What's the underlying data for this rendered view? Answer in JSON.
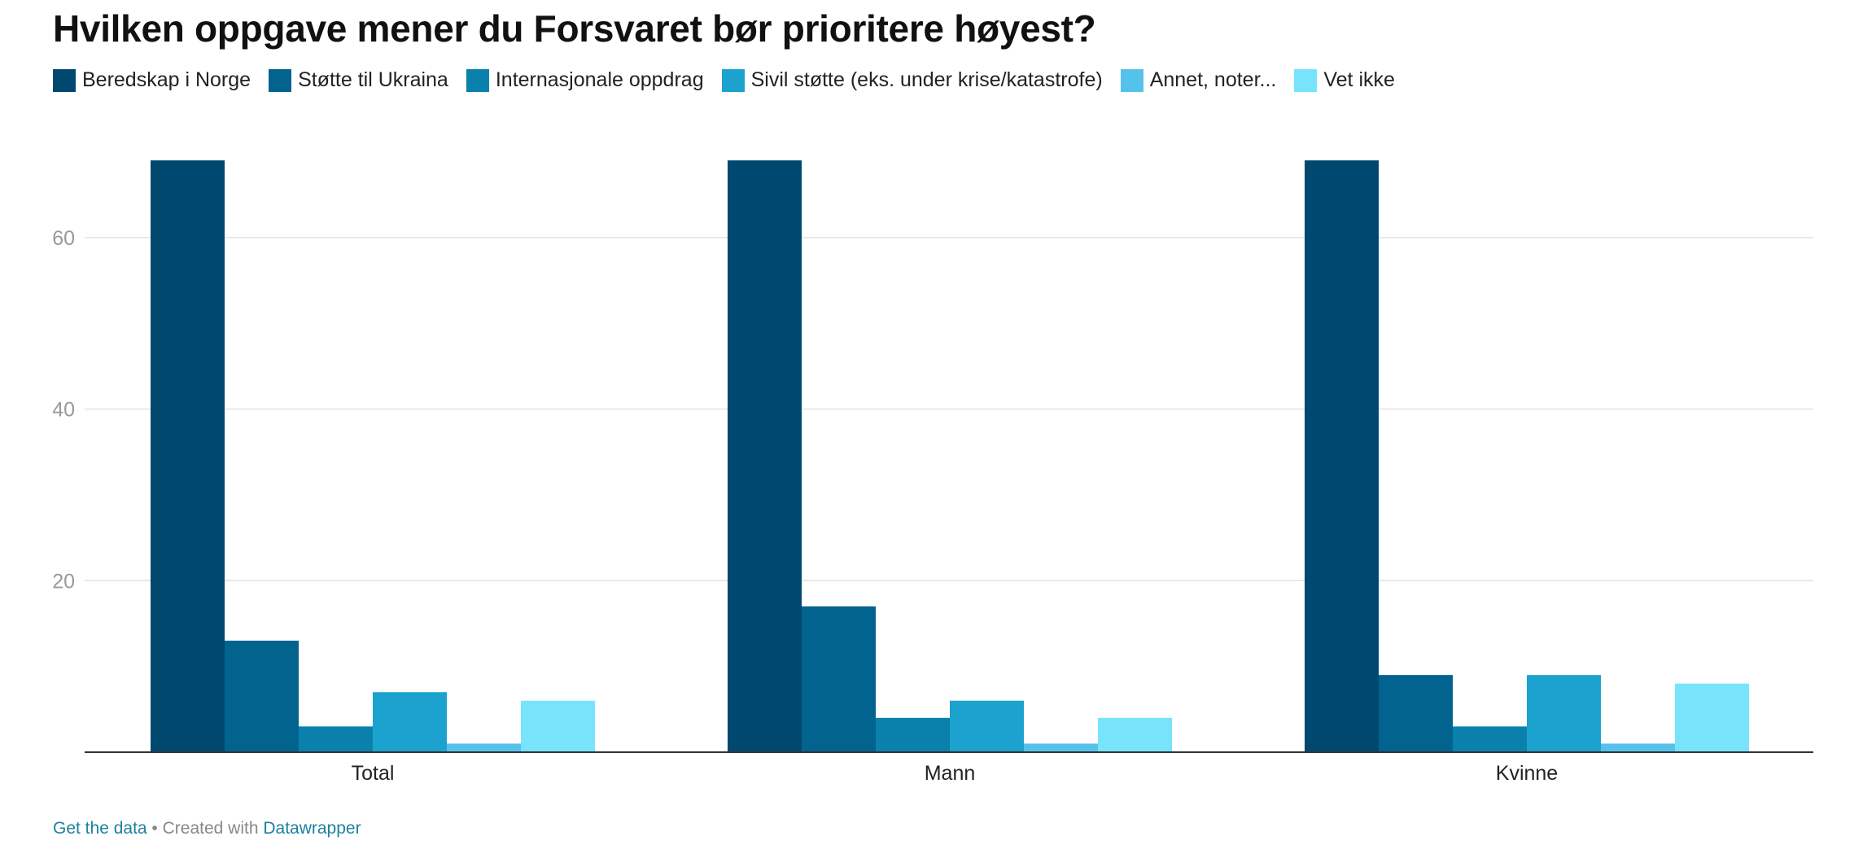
{
  "title": "Hvilken oppgave mener du Forsvaret bør prioritere høyest?",
  "footer": {
    "get_data": "Get the data",
    "separator": " • Created with ",
    "tool": "Datawrapper"
  },
  "chart_data": {
    "type": "bar",
    "title": "Hvilken oppgave mener du Forsvaret bør prioritere høyest?",
    "categories": [
      "Total",
      "Mann",
      "Kvinne"
    ],
    "series": [
      {
        "name": "Beredskap i Norge",
        "color": "#00486f",
        "values": [
          69,
          69,
          69
        ]
      },
      {
        "name": "Støtte til Ukraina",
        "color": "#02638f",
        "values": [
          13,
          17,
          9
        ]
      },
      {
        "name": "Internasjonale oppdrag",
        "color": "#0a81ad",
        "values": [
          3,
          4,
          3
        ]
      },
      {
        "name": "Sivil støtte (eks. under krise/katastrofe)",
        "color": "#1ca2cf",
        "values": [
          7,
          6,
          9
        ]
      },
      {
        "name": "Annet, noter...",
        "color": "#55c2ec",
        "values": [
          1,
          1,
          1
        ]
      },
      {
        "name": "Vet ikke",
        "color": "#77e4fc",
        "values": [
          6,
          4,
          8
        ]
      }
    ],
    "yticks": [
      20,
      40,
      60
    ],
    "ylim": [
      0,
      69
    ],
    "grid": true,
    "legend_position": "top-left"
  }
}
